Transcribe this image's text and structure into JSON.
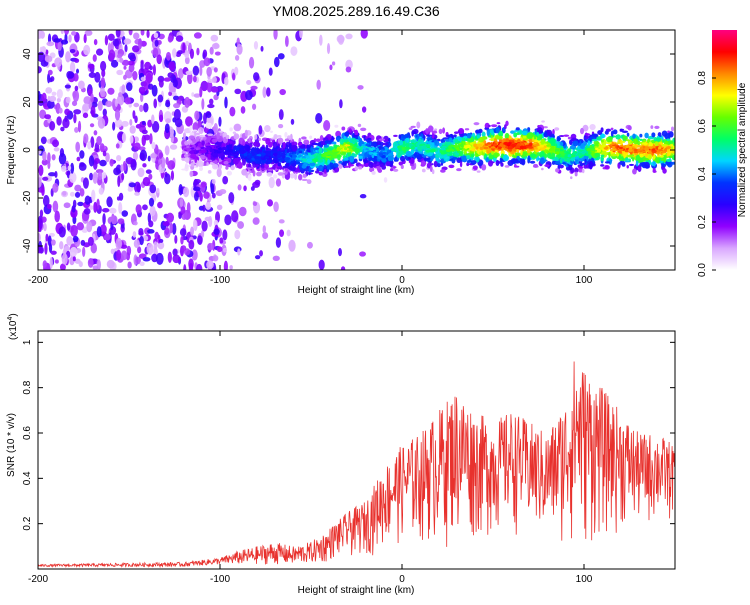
{
  "figure": {
    "title": "YM08.2025.289.16.49.C36"
  },
  "colors": {
    "snr_line": "#e8312d",
    "axis": "#000000",
    "background": "#ffffff"
  },
  "chart_data": [
    {
      "type": "heatmap",
      "name": "spectrogram",
      "xlabel": "Height of straight line (km)",
      "ylabel": "Frequency (Hz)",
      "xlim": [
        -200,
        150
      ],
      "ylim": [
        -50,
        50
      ],
      "x_ticks": [
        -200,
        -100,
        0,
        100
      ],
      "y_ticks": [
        -40,
        -20,
        0,
        20,
        40
      ],
      "colorbar": {
        "label": "Normalized spectral amplitude",
        "range": [
          0.0,
          1.0
        ],
        "ticks": [
          0.0,
          0.2,
          0.4,
          0.6,
          0.8
        ],
        "colormap": [
          "#ffffff",
          "#d9a6ff",
          "#9000ff",
          "#2a00ff",
          "#0033ff",
          "#00d5ff",
          "#00ff66",
          "#66ff00",
          "#ffff00",
          "#ff8800",
          "#ff0000",
          "#ff0080"
        ]
      },
      "ridge": {
        "x": [
          -120,
          -100,
          -90,
          -80,
          -70,
          -60,
          -50,
          -40,
          -30,
          -20,
          -10,
          0,
          10,
          20,
          30,
          40,
          50,
          60,
          70,
          80,
          90,
          100,
          110,
          120,
          130,
          140,
          150
        ],
        "freq": [
          0,
          0,
          -1,
          -3,
          -2,
          -3,
          -4,
          -2,
          1,
          0,
          -2,
          1,
          2,
          -1,
          1,
          1,
          2,
          2,
          2,
          1,
          -2,
          -1,
          1,
          1,
          0,
          0,
          0
        ],
        "amplitude": [
          0.15,
          0.25,
          0.3,
          0.35,
          0.3,
          0.4,
          0.5,
          0.6,
          0.7,
          0.45,
          0.4,
          0.55,
          0.5,
          0.5,
          0.6,
          0.75,
          0.85,
          0.9,
          0.85,
          0.7,
          0.55,
          0.5,
          0.75,
          0.85,
          0.8,
          0.85,
          0.7
        ]
      },
      "noise_region_x": [
        -200,
        -60
      ]
    },
    {
      "type": "line",
      "name": "snr",
      "xlabel": "Height of straight line (km)",
      "ylabel": "SNR (10 * v/v)",
      "y_scale_label": "(x10",
      "y_scale_exponent": "4",
      "y_scale_close": ")",
      "xlim": [
        -200,
        150
      ],
      "ylim": [
        0,
        1.05
      ],
      "x_ticks": [
        -200,
        -100,
        0,
        100
      ],
      "y_ticks": [
        0.2,
        0.4,
        0.6,
        0.8,
        1.0
      ],
      "envelope": {
        "x": [
          -200,
          -120,
          -100,
          -90,
          -80,
          -70,
          -60,
          -50,
          -40,
          -30,
          -20,
          -10,
          0,
          10,
          20,
          30,
          40,
          50,
          60,
          70,
          80,
          90,
          95,
          100,
          110,
          120,
          130,
          140,
          150
        ],
        "y": [
          0.02,
          0.03,
          0.05,
          0.08,
          0.1,
          0.12,
          0.1,
          0.12,
          0.18,
          0.25,
          0.3,
          0.45,
          0.55,
          0.6,
          0.7,
          0.8,
          0.7,
          0.65,
          0.7,
          0.65,
          0.6,
          0.75,
          0.95,
          0.9,
          0.8,
          0.7,
          0.6,
          0.6,
          0.55
        ]
      },
      "floor": {
        "x": [
          -200,
          -120,
          -100,
          -80,
          -60,
          -40,
          -20,
          0,
          20,
          40,
          60,
          80,
          100,
          120,
          150
        ],
        "y": [
          0.01,
          0.01,
          0.02,
          0.02,
          0.02,
          0.03,
          0.05,
          0.1,
          0.08,
          0.1,
          0.15,
          0.1,
          0.05,
          0.15,
          0.2
        ]
      }
    }
  ]
}
